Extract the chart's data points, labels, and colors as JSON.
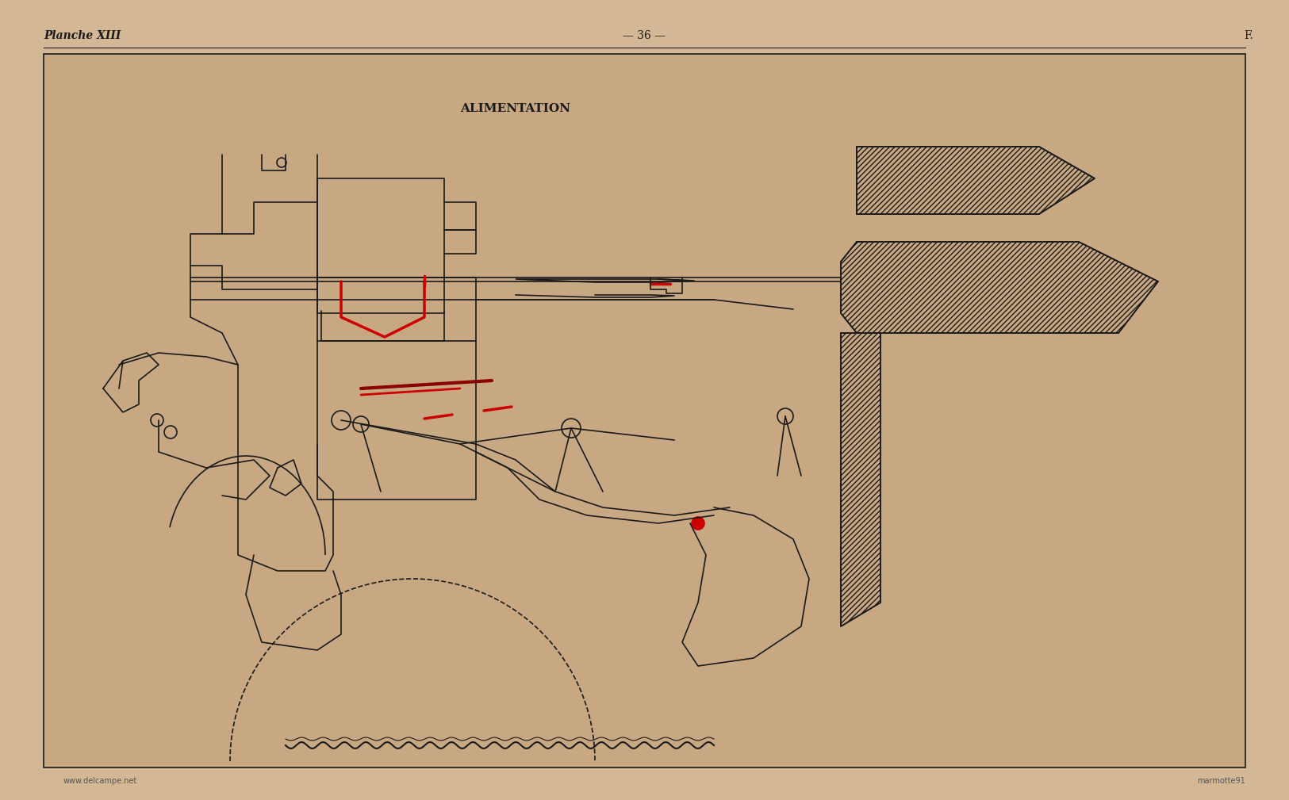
{
  "bg_color": "#c8a882",
  "page_bg": "#d4b896",
  "border_color": "#2a2a2a",
  "line_color": "#1a1a1a",
  "red_color": "#cc0000",
  "dark_red": "#8b0000",
  "hatch_color": "#2a2a2a",
  "title_text": "ALIMENTATION",
  "header_left": "Planche XIII",
  "header_center": "— 36 —",
  "header_right": "F.",
  "footer_left": "www.delcampe.net",
  "footer_right": "marmotte91",
  "title_fontsize": 11,
  "header_fontsize": 10
}
